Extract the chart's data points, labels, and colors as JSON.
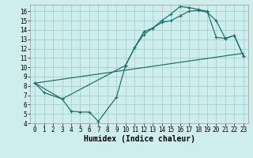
{
  "xlabel": "Humidex (Indice chaleur)",
  "bg_color": "#ceeeed",
  "grid_color": "#aad4d3",
  "line_color": "#1a6b6b",
  "xlim": [
    -0.5,
    23.5
  ],
  "ylim": [
    4,
    16.7
  ],
  "xticks": [
    0,
    1,
    2,
    3,
    4,
    5,
    6,
    7,
    8,
    9,
    10,
    11,
    12,
    13,
    14,
    15,
    16,
    17,
    18,
    19,
    20,
    21,
    22,
    23
  ],
  "yticks": [
    4,
    5,
    6,
    7,
    8,
    9,
    10,
    11,
    12,
    13,
    14,
    15,
    16
  ],
  "line1_x": [
    0,
    1,
    3,
    4,
    5,
    6,
    7,
    9,
    10,
    11,
    12,
    13,
    14,
    15,
    16,
    17,
    18,
    19,
    20,
    21,
    22,
    23
  ],
  "line1_y": [
    8.3,
    7.3,
    6.6,
    5.3,
    5.2,
    5.2,
    4.2,
    6.8,
    10.2,
    12.1,
    13.8,
    14.2,
    15.0,
    15.7,
    16.5,
    16.4,
    16.2,
    16.0,
    13.2,
    13.1,
    13.4,
    11.2
  ],
  "line2_x": [
    0,
    3,
    10,
    11,
    12,
    13,
    14,
    15,
    16,
    17,
    18,
    19,
    20,
    21,
    22,
    23
  ],
  "line2_y": [
    8.3,
    6.6,
    10.2,
    12.1,
    13.5,
    14.2,
    14.8,
    15.0,
    15.5,
    16.0,
    16.1,
    15.9,
    15.0,
    13.1,
    13.4,
    11.2
  ],
  "line3_x": [
    0,
    23
  ],
  "line3_y": [
    8.3,
    11.5
  ],
  "tick_fontsize": 5.5,
  "xlabel_fontsize": 7.0
}
